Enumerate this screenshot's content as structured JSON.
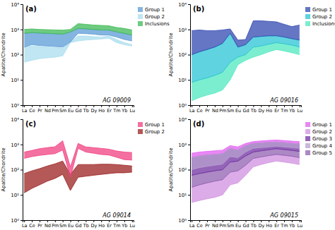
{
  "chart_data": [
    {
      "type": "range_area",
      "title": "(a)",
      "annotation": "AG 09009",
      "ylabel": "Apatite/Chondrite",
      "categories": [
        "La",
        "Ce",
        "Pr",
        "Nd",
        "Pm",
        "Sm",
        "Eu",
        "Gd",
        "Tb",
        "Dy",
        "Ho",
        "Er",
        "Tm",
        "Yb",
        "Lu"
      ],
      "series": [
        {
          "name": "Group 2",
          "color": "#aaddee",
          "low": [
            50,
            60,
            70,
            75,
            80,
            90,
            300,
            350,
            380,
            400,
            420,
            450,
            300,
            250,
            220
          ],
          "high": [
            200,
            220,
            210,
            200,
            190,
            180,
            320,
            550,
            550,
            520,
            500,
            550,
            400,
            300,
            250
          ]
        },
        {
          "name": "Group 1",
          "color": "#5b9bd5",
          "low": [
            200,
            250,
            230,
            220,
            210,
            200,
            320,
            700,
            680,
            650,
            600,
            600,
            500,
            400,
            350
          ],
          "high": [
            700,
            750,
            720,
            700,
            680,
            650,
            800,
            1100,
            1050,
            1000,
            950,
            950,
            800,
            700,
            600
          ]
        },
        {
          "name": "Inclusions",
          "color": "#3dba55",
          "low": [
            700,
            750,
            720,
            700,
            680,
            650,
            800,
            1100,
            1050,
            1000,
            950,
            950,
            800,
            700,
            600
          ],
          "high": [
            1000,
            1050,
            1000,
            980,
            960,
            940,
            1000,
            1700,
            1600,
            1500,
            1450,
            1400,
            1200,
            1100,
            950
          ]
        }
      ],
      "log": "y",
      "ylim": [
        1,
        10000
      ],
      "yticks": [
        {
          "value": 1,
          "label": "10⁰"
        },
        {
          "value": 10,
          "label": "10¹"
        },
        {
          "value": 100,
          "label": "10²"
        },
        {
          "value": 1000,
          "label": "10³"
        },
        {
          "value": 10000,
          "label": "10⁴"
        }
      ],
      "legend": "right"
    },
    {
      "type": "range_area",
      "title": "(b)",
      "annotation": "AG 09016",
      "ylabel": "Apatite/Chondrite",
      "categories": [
        "La",
        "Ce",
        "Pr",
        "Nd",
        "Pm",
        "Sm",
        "Eu",
        "Gd",
        "Tb",
        "Dy",
        "Ho",
        "Er",
        "Tm",
        "Yb",
        "Lu"
      ],
      "series": [
        {
          "name": "Inclusions",
          "color": "#50e8c0",
          "low": [
            1.5,
            2,
            2.5,
            3,
            4,
            10,
            40,
            60,
            80,
            100,
            130,
            160,
            140,
            120,
            100
          ],
          "high": [
            8,
            10,
            12,
            15,
            20,
            50,
            80,
            100,
            200,
            220,
            260,
            300,
            270,
            240,
            200
          ]
        },
        {
          "name": "Group 2",
          "color": "#29c4d4",
          "low": [
            8,
            10,
            12,
            15,
            20,
            50,
            80,
            100,
            200,
            220,
            260,
            300,
            270,
            240,
            200
          ],
          "high": [
            100,
            130,
            160,
            200,
            280,
            700,
            200,
            250,
            500,
            530,
            560,
            560,
            500,
            430,
            380
          ]
        },
        {
          "name": "Group 1",
          "color": "#3048b0",
          "low": [
            100,
            130,
            160,
            200,
            280,
            700,
            200,
            250,
            500,
            530,
            560,
            560,
            500,
            430,
            380
          ],
          "high": [
            900,
            950,
            900,
            900,
            950,
            1050,
            380,
            400,
            2200,
            2200,
            2100,
            2000,
            1600,
            1300,
            1500
          ]
        }
      ],
      "log": "y",
      "ylim": [
        1,
        10000
      ],
      "yticks": [
        {
          "value": 1,
          "label": "10⁰"
        },
        {
          "value": 10,
          "label": "10¹"
        },
        {
          "value": 100,
          "label": "10²"
        },
        {
          "value": 1000,
          "label": "10³"
        },
        {
          "value": 10000,
          "label": "10⁴"
        }
      ],
      "legend": "right"
    },
    {
      "type": "range_area",
      "title": "(c)",
      "annotation": "AG 09014",
      "ylabel": "Apatite/Chondrite",
      "categories": [
        "La",
        "Ce",
        "Pr",
        "Nd",
        "Pm",
        "Sm",
        "Eu",
        "Gd",
        "Tb",
        "Dy",
        "Ho",
        "Er",
        "Tm",
        "Yb",
        "Lu"
      ],
      "series": [
        {
          "name": "Group 2",
          "color": "#9b2020",
          "low": [
            12,
            18,
            25,
            35,
            45,
            65,
            15,
            50,
            55,
            60,
            65,
            70,
            75,
            75,
            80
          ],
          "high": [
            70,
            90,
            110,
            140,
            170,
            220,
            65,
            160,
            160,
            160,
            165,
            165,
            160,
            150,
            140
          ]
        },
        {
          "name": "Group 1",
          "color": "#f04080",
          "low": [
            280,
            330,
            370,
            400,
            430,
            600,
            50,
            700,
            500,
            450,
            400,
            380,
            310,
            250,
            240
          ],
          "high": [
            500,
            580,
            680,
            750,
            810,
            1400,
            130,
            1100,
            800,
            750,
            700,
            650,
            550,
            500,
            480
          ]
        }
      ],
      "log": "y",
      "ylim": [
        1,
        10000
      ],
      "yticks": [
        {
          "value": 1,
          "label": "10⁰"
        },
        {
          "value": 10,
          "label": "10¹"
        },
        {
          "value": 100,
          "label": "10²"
        },
        {
          "value": 1000,
          "label": "10³"
        },
        {
          "value": 10000,
          "label": "10⁴"
        }
      ],
      "legend": "right"
    },
    {
      "type": "range_area",
      "title": "(d)",
      "annotation": "AG 09015",
      "ylabel": "Apatite/Chondrite",
      "categories": [
        "La",
        "Ce",
        "Pr",
        "Nd",
        "Pm",
        "Sm",
        "Eu",
        "Gd",
        "Tb",
        "Dy",
        "Ho",
        "Er",
        "Tm",
        "Yb",
        "Lu"
      ],
      "series": [
        {
          "name": "Group 2",
          "color": "#d090e0",
          "low": [
            5,
            6,
            7,
            8,
            10,
            25,
            30,
            60,
            130,
            160,
            190,
            220,
            200,
            180,
            160
          ],
          "high": [
            20,
            25,
            30,
            35,
            40,
            80,
            90,
            150,
            280,
            320,
            360,
            400,
            370,
            340,
            300
          ]
        },
        {
          "name": "Group 5",
          "color": "#9060b0",
          "low": [
            20,
            25,
            30,
            35,
            40,
            80,
            90,
            150,
            280,
            320,
            360,
            400,
            370,
            340,
            300
          ],
          "high": [
            60,
            70,
            80,
            90,
            100,
            200,
            220,
            350,
            500,
            560,
            620,
            680,
            630,
            580,
            530
          ]
        },
        {
          "name": "Group 3",
          "color": "#7030a0",
          "low": [
            60,
            70,
            80,
            90,
            100,
            200,
            220,
            350,
            500,
            560,
            620,
            680,
            630,
            580,
            530
          ],
          "high": [
            300,
            350,
            380,
            400,
            430,
            700,
            600,
            900,
            1100,
            1150,
            1200,
            1250,
            1180,
            1100,
            1050
          ]
        },
        {
          "name": "Group 1",
          "color": "#e060f0",
          "low": [
            300,
            350,
            380,
            400,
            430,
            700,
            600,
            900,
            1100,
            1150,
            1200,
            1250,
            1180,
            1100,
            1050
          ],
          "high": [
            450,
            500,
            530,
            560,
            590,
            900,
            800,
            1100,
            1300,
            1380,
            1450,
            1500,
            1430,
            1350,
            1300
          ]
        },
        {
          "name": "Group 4",
          "color": "#b8a0d0",
          "low": [
            100,
            120,
            135,
            150,
            165,
            330,
            300,
            500,
            700,
            750,
            800,
            850,
            800,
            750,
            700
          ],
          "high": [
            300,
            350,
            380,
            400,
            430,
            700,
            600,
            900,
            1100,
            1150,
            1200,
            1250,
            1180,
            1100,
            1050
          ]
        }
      ],
      "log": "y",
      "ylim": [
        1,
        10000
      ],
      "yticks": [
        {
          "value": 1,
          "label": "10⁰"
        },
        {
          "value": 10,
          "label": "10¹"
        },
        {
          "value": 100,
          "label": "10²"
        },
        {
          "value": 1000,
          "label": "10³"
        },
        {
          "value": 10000,
          "label": "10⁴"
        }
      ],
      "legend": "right"
    }
  ]
}
